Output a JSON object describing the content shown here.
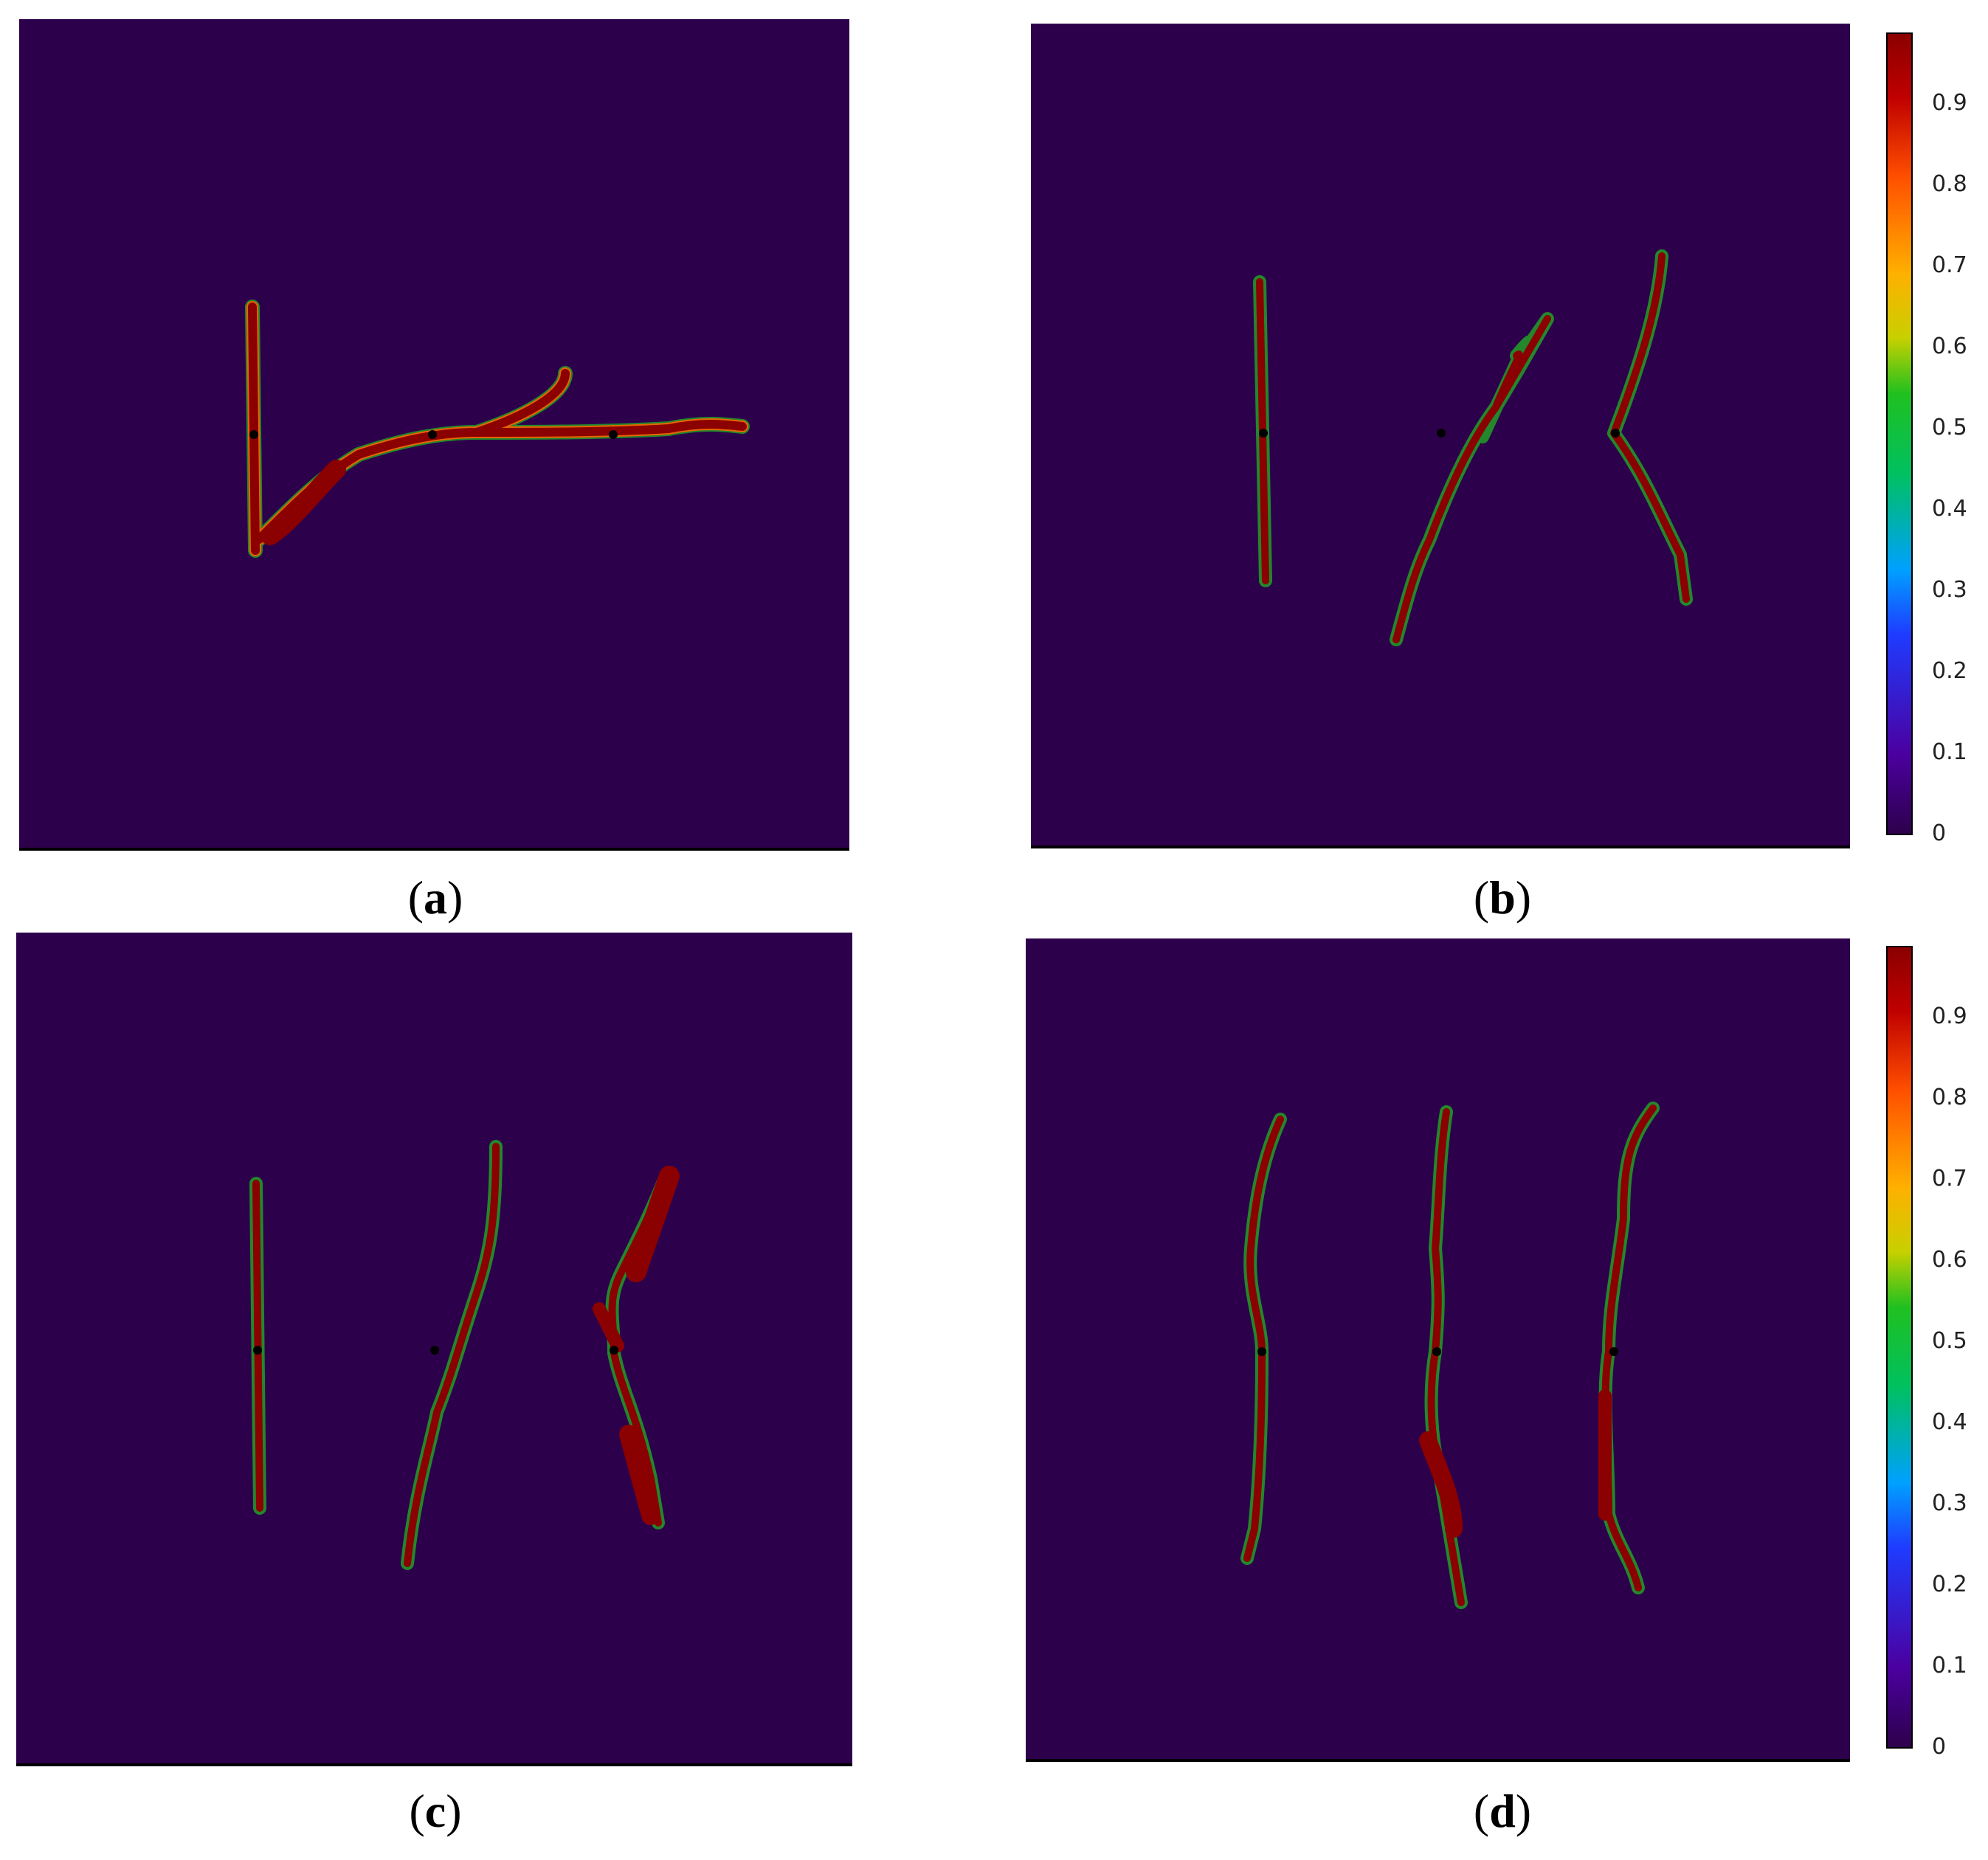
{
  "figure": {
    "background_color": "#2d004b",
    "crack_color": "#8b0000",
    "panels": [
      {
        "id": "a",
        "caption_open": "(",
        "caption_letter": "a",
        "caption_close": ")"
      },
      {
        "id": "b",
        "caption_open": "(",
        "caption_letter": "b",
        "caption_close": ")"
      },
      {
        "id": "c",
        "caption_open": "(",
        "caption_letter": "c",
        "caption_close": ")"
      },
      {
        "id": "d",
        "caption_open": "(",
        "caption_letter": "d",
        "caption_close": ")"
      }
    ],
    "colorbar": {
      "ticks": [
        "0.9",
        "0.8",
        "0.7",
        "0.6",
        "0.5",
        "0.4",
        "0.3",
        "0.2",
        "0.1",
        "0"
      ],
      "min": 0,
      "max": 1,
      "colormap": [
        "#2d004b",
        "#4b00a0",
        "#1f3cff",
        "#00a0ff",
        "#00c060",
        "#20c020",
        "#c8d000",
        "#ffb000",
        "#ff5000",
        "#c00000",
        "#8b0000"
      ]
    }
  }
}
